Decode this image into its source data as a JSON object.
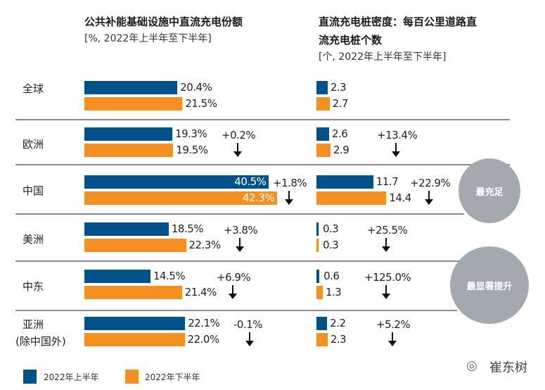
{
  "chart_data": [
    {
      "type": "bar",
      "title": "公共补能基础设施中直流充电份额",
      "subtitle": "[%, 2022年上半年至下半年]",
      "categories": [
        "全球",
        "欧洲",
        "中国",
        "美洲",
        "中东",
        "亚洲\n(除中国外)"
      ],
      "series": [
        {
          "name": "2022年上半年",
          "values": [
            20.4,
            19.3,
            40.5,
            18.5,
            14.5,
            22.1
          ],
          "labels": [
            "20.4%",
            "19.3%",
            "40.5%",
            "18.5%",
            "14.5%",
            "22.1%"
          ]
        },
        {
          "name": "2022年下半年",
          "values": [
            21.5,
            19.5,
            42.3,
            22.3,
            21.4,
            22.0
          ],
          "labels": [
            "21.5%",
            "19.5%",
            "42.3%",
            "22.3%",
            "21.4%",
            "22.0%"
          ]
        }
      ],
      "changes": [
        "",
        "+0.2%",
        "+1.8%",
        "+3.8%",
        "+6.9%",
        "-0.1%"
      ]
    },
    {
      "type": "bar",
      "title": "直流充电桩密度：每百公里道路直流充电桩个数",
      "subtitle": "[个, 2022年上半年至下半年]",
      "categories": [
        "全球",
        "欧洲",
        "中国",
        "美洲",
        "中东",
        "亚洲\n(除中国外)"
      ],
      "series": [
        {
          "name": "2022年上半年",
          "values": [
            2.3,
            2.6,
            11.7,
            0.3,
            0.6,
            2.2
          ],
          "labels": [
            "2.3",
            "2.6",
            "11.7",
            "0.3",
            "0.6",
            "2.2"
          ]
        },
        {
          "name": "2022年下半年",
          "values": [
            2.7,
            2.9,
            14.4,
            0.3,
            1.3,
            2.3
          ],
          "labels": [
            "2.7",
            "2.9",
            "14.4",
            "0.3",
            "1.3",
            "2.3"
          ]
        }
      ],
      "changes": [
        "",
        "+13.4%",
        "+22.9%",
        "+25.5%",
        "+125.0%",
        "+5.2%"
      ]
    }
  ],
  "categories_display": [
    "全球",
    "欧洲",
    "中国",
    "美洲",
    "中东",
    "亚洲",
    "(除中国外)"
  ],
  "titles": {
    "left_title": "公共补能基础设施中直流充电份额",
    "left_sub": "[%, 2022年上半年至下半年]",
    "right_title_1": "直流充电桩密度：每百公里道路直",
    "right_title_2": "流充电桩个数",
    "right_sub": "[个, 2022年上半年至下半年]"
  },
  "badges": {
    "most_sufficient": "最充足",
    "most_improved": "最显著提升"
  },
  "legend": [
    {
      "label": "2022年上半年",
      "color": "#00538a"
    },
    {
      "label": "2022年下半年",
      "color": "#f39021"
    }
  ],
  "watermark": "崔东树",
  "colors": {
    "h1": "#00538a",
    "h2": "#f39021",
    "badge": "#a3a9ae"
  }
}
